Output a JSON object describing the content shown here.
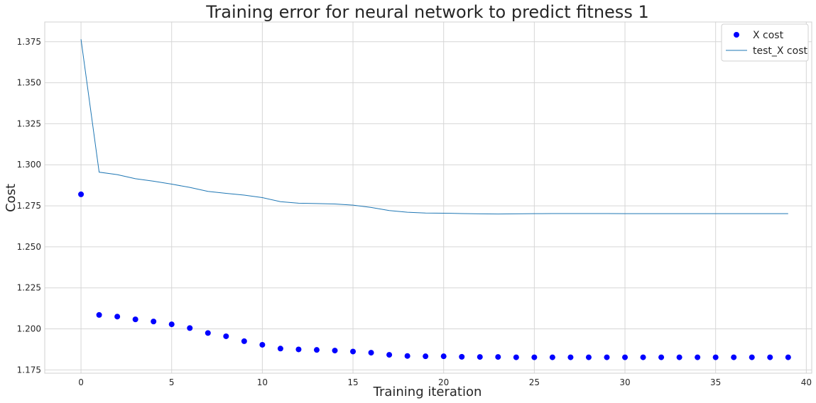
{
  "chart_data": {
    "type": "line",
    "title": "Training error for neural network to predict fitness 1",
    "xlabel": "Training iteration",
    "ylabel": "Cost",
    "xlim": [
      -2,
      40.3
    ],
    "ylim": [
      1.173,
      1.387
    ],
    "xticks": [
      0,
      5,
      10,
      15,
      20,
      25,
      30,
      35,
      40
    ],
    "yticks": [
      1.175,
      1.2,
      1.225,
      1.25,
      1.275,
      1.3,
      1.325,
      1.35,
      1.375
    ],
    "ytick_labels": [
      "1.175",
      "1.200",
      "1.225",
      "1.250",
      "1.275",
      "1.300",
      "1.325",
      "1.350",
      "1.375"
    ],
    "grid": true,
    "legend_position": "top-right",
    "series": [
      {
        "name": "X cost",
        "style": "markers",
        "color": "#0000ff",
        "x": [
          0,
          1,
          2,
          3,
          4,
          5,
          6,
          7,
          8,
          9,
          10,
          11,
          12,
          13,
          14,
          15,
          16,
          17,
          18,
          19,
          20,
          21,
          22,
          23,
          24,
          25,
          26,
          27,
          28,
          29,
          30,
          31,
          32,
          33,
          34,
          35,
          36,
          37,
          38,
          39
        ],
        "values": [
          1.282,
          1.2085,
          1.2075,
          1.2058,
          1.2045,
          1.2028,
          1.2005,
          1.1975,
          1.1955,
          1.1925,
          1.1903,
          1.188,
          1.1875,
          1.1872,
          1.1868,
          1.1862,
          1.1855,
          1.1842,
          1.1835,
          1.1833,
          1.1833,
          1.183,
          1.1829,
          1.1829,
          1.1827,
          1.1827,
          1.1827,
          1.1827,
          1.1827,
          1.1827,
          1.1827,
          1.1827,
          1.1827,
          1.1827,
          1.1827,
          1.1827,
          1.1827,
          1.1827,
          1.1827,
          1.1827
        ]
      },
      {
        "name": "test_X cost",
        "style": "line",
        "color": "#1f77b4",
        "x": [
          0,
          1,
          2,
          3,
          4,
          5,
          6,
          7,
          8,
          9,
          10,
          11,
          12,
          13,
          14,
          15,
          16,
          17,
          18,
          19,
          20,
          21,
          22,
          23,
          24,
          25,
          26,
          27,
          28,
          29,
          30,
          31,
          32,
          33,
          34,
          35,
          36,
          37,
          38,
          39
        ],
        "values": [
          1.3765,
          1.2955,
          1.294,
          1.2915,
          1.29,
          1.2882,
          1.2862,
          1.2838,
          1.2826,
          1.2815,
          1.28,
          1.2775,
          1.2766,
          1.2764,
          1.2761,
          1.2754,
          1.274,
          1.2721,
          1.2711,
          1.2706,
          1.2705,
          1.2703,
          1.2701,
          1.27,
          1.2701,
          1.2702,
          1.2703,
          1.2703,
          1.2703,
          1.2703,
          1.2702,
          1.2702,
          1.2702,
          1.2702,
          1.2702,
          1.2702,
          1.2702,
          1.2702,
          1.2702,
          1.2702
        ]
      }
    ]
  }
}
